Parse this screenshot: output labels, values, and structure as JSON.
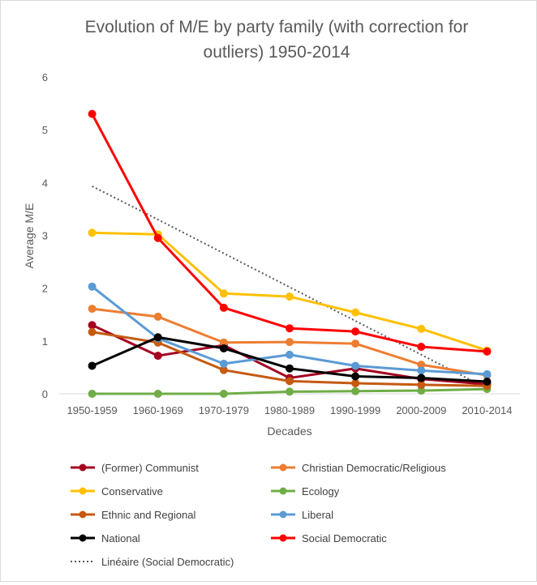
{
  "chart_data": {
    "type": "line",
    "title_lines": [
      "Evolution of M/E by party family (with correction for",
      "outliers) 1950-2014"
    ],
    "xlabel": "Decades",
    "ylabel": "Average M/E",
    "ylim": [
      0,
      6
    ],
    "yticks": [
      "0",
      "1",
      "2",
      "3",
      "4",
      "5",
      "6"
    ],
    "categories": [
      "1950-1959",
      "1960-1969",
      "1970-1979",
      "1980-1989",
      "1990-1999",
      "2000-2009",
      "2010-2014"
    ],
    "grid": false,
    "legend_position": "bottom",
    "series": [
      {
        "name": "(Former) Communist",
        "color": "#a50021",
        "values": [
          1.3,
          0.72,
          0.92,
          0.3,
          0.48,
          0.28,
          0.18
        ]
      },
      {
        "name": "Christian Democratic/Religious",
        "color": "#ed7d31",
        "values": [
          1.61,
          1.46,
          0.97,
          0.98,
          0.95,
          0.55,
          0.35
        ]
      },
      {
        "name": "Conservative",
        "color": "#ffc000",
        "values": [
          3.05,
          3.02,
          1.9,
          1.84,
          1.54,
          1.23,
          0.82
        ]
      },
      {
        "name": "Ecology",
        "color": "#70ad47",
        "values": [
          0.0,
          0.0,
          0.0,
          0.04,
          0.05,
          0.06,
          0.09
        ]
      },
      {
        "name": "Ethnic and Regional",
        "color": "#c55a11",
        "values": [
          1.17,
          0.97,
          0.45,
          0.24,
          0.2,
          0.17,
          0.15
        ]
      },
      {
        "name": "Liberal",
        "color": "#5b9bd5",
        "values": [
          2.03,
          1.05,
          0.57,
          0.74,
          0.53,
          0.44,
          0.37
        ]
      },
      {
        "name": "National",
        "color": "#000000",
        "values": [
          0.53,
          1.07,
          0.86,
          0.48,
          0.33,
          0.3,
          0.23
        ]
      },
      {
        "name": "Social Democratic",
        "color": "#ff0000",
        "values": [
          5.3,
          2.95,
          1.63,
          1.24,
          1.18,
          0.89,
          0.8
        ]
      }
    ],
    "trendline": {
      "name": "Linéaire (Social Democratic)",
      "color": "#595959",
      "values": [
        3.93,
        3.3,
        2.66,
        2.02,
        1.38,
        0.74,
        0.1
      ]
    }
  }
}
